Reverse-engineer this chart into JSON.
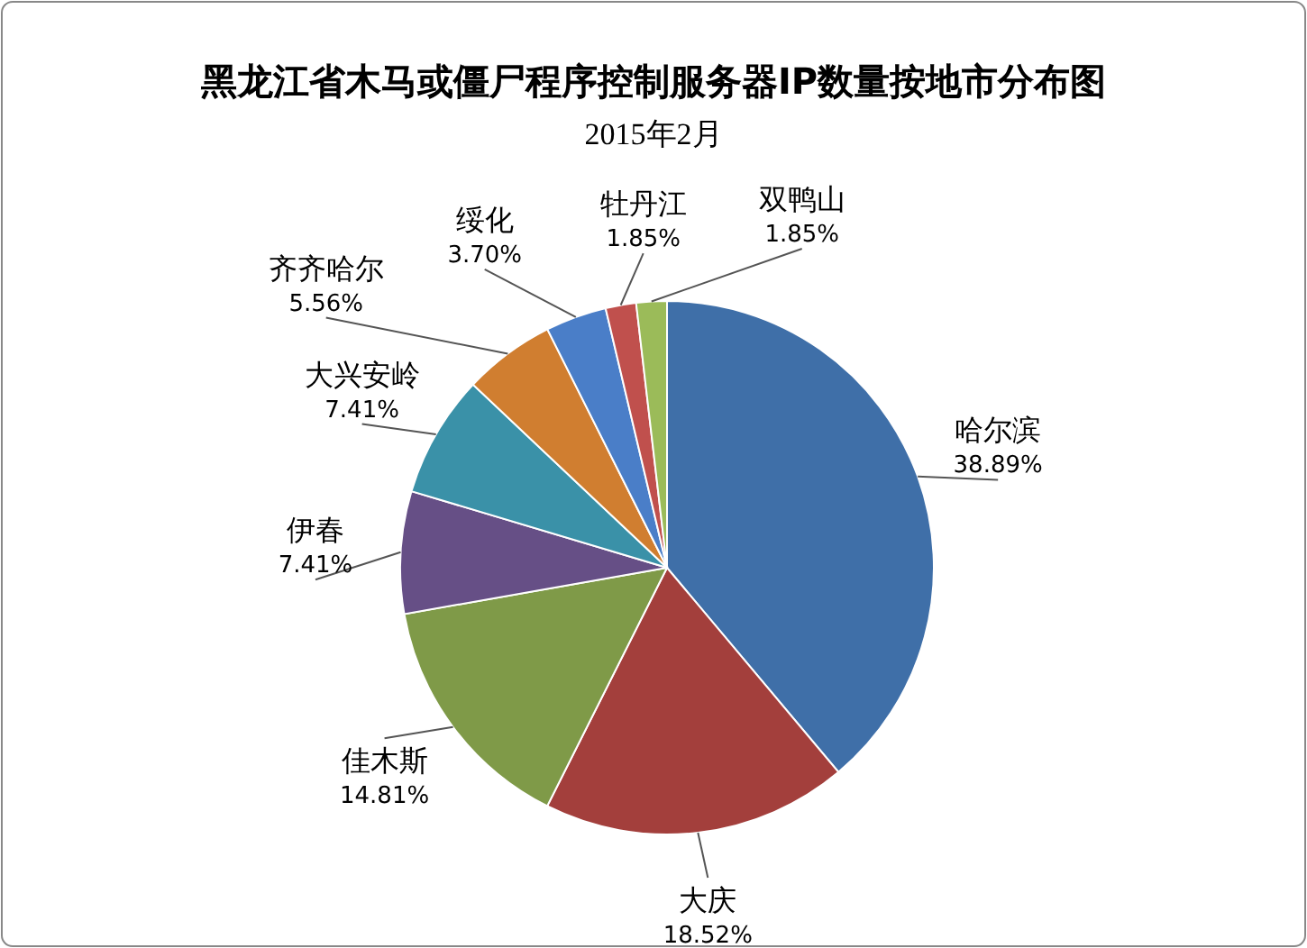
{
  "chart_data": {
    "type": "pie",
    "title": "黑龙江省木马或僵尸程序控制服务器IP数量按地市分布图",
    "subtitle": "2015年2月",
    "categories": [
      "哈尔滨",
      "大庆",
      "佳木斯",
      "伊春",
      "大兴安岭",
      "齐齐哈尔",
      "绥化",
      "牡丹江",
      "双鸭山"
    ],
    "values": [
      38.89,
      18.52,
      14.81,
      7.41,
      7.41,
      5.56,
      3.7,
      1.85,
      1.85
    ],
    "value_labels": [
      "38.89%",
      "18.52%",
      "14.81%",
      "7.41%",
      "7.41%",
      "5.56%",
      "3.70%",
      "1.85%",
      "1.85%"
    ],
    "colors": [
      "#3f6fa8",
      "#a33f3c",
      "#7f9a48",
      "#664f86",
      "#3a91a8",
      "#d07e30",
      "#4a7ec8",
      "#c0504d",
      "#9bbb59"
    ]
  }
}
